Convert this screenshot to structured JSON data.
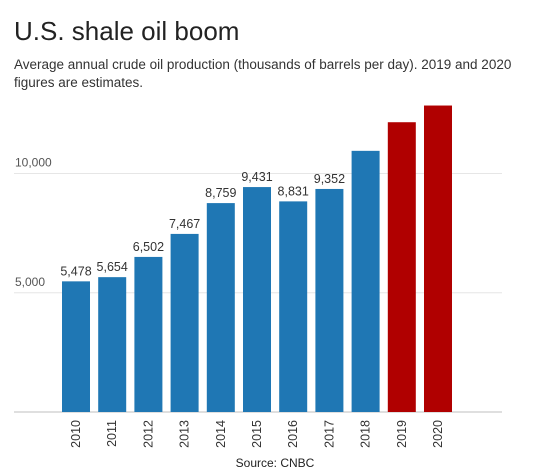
{
  "chart_data": {
    "type": "bar",
    "title": "U.S. shale oil boom",
    "subtitle": "Average annual crude oil production (thousands of barrels per day). 2019 and 2020 figures are estimates.",
    "source": "Source: CNBC",
    "categories": [
      "2010",
      "2011",
      "2012",
      "2013",
      "2014",
      "2015",
      "2016",
      "2017",
      "2018",
      "2019",
      "2020"
    ],
    "values": [
      5478,
      5654,
      6502,
      7467,
      8759,
      9431,
      8831,
      9352,
      10950,
      12150,
      12850
    ],
    "data_labels": [
      "5,478",
      "5,654",
      "6,502",
      "7,467",
      "8,759",
      "9,431",
      "8,831",
      "9,352",
      "",
      "",
      ""
    ],
    "estimate": [
      false,
      false,
      false,
      false,
      false,
      false,
      false,
      false,
      false,
      true,
      true
    ],
    "colors": {
      "actual": "#1f77b4",
      "estimate": "#b00000",
      "grid": "#e6e6e6",
      "axis": "#bfbfbf"
    },
    "yticks": [
      {
        "value": 5000,
        "label": "5,000"
      },
      {
        "value": 10000,
        "label": "10,000"
      }
    ],
    "ylim": [
      0,
      13000
    ],
    "xlabel": "",
    "ylabel": "",
    "grid": true
  }
}
